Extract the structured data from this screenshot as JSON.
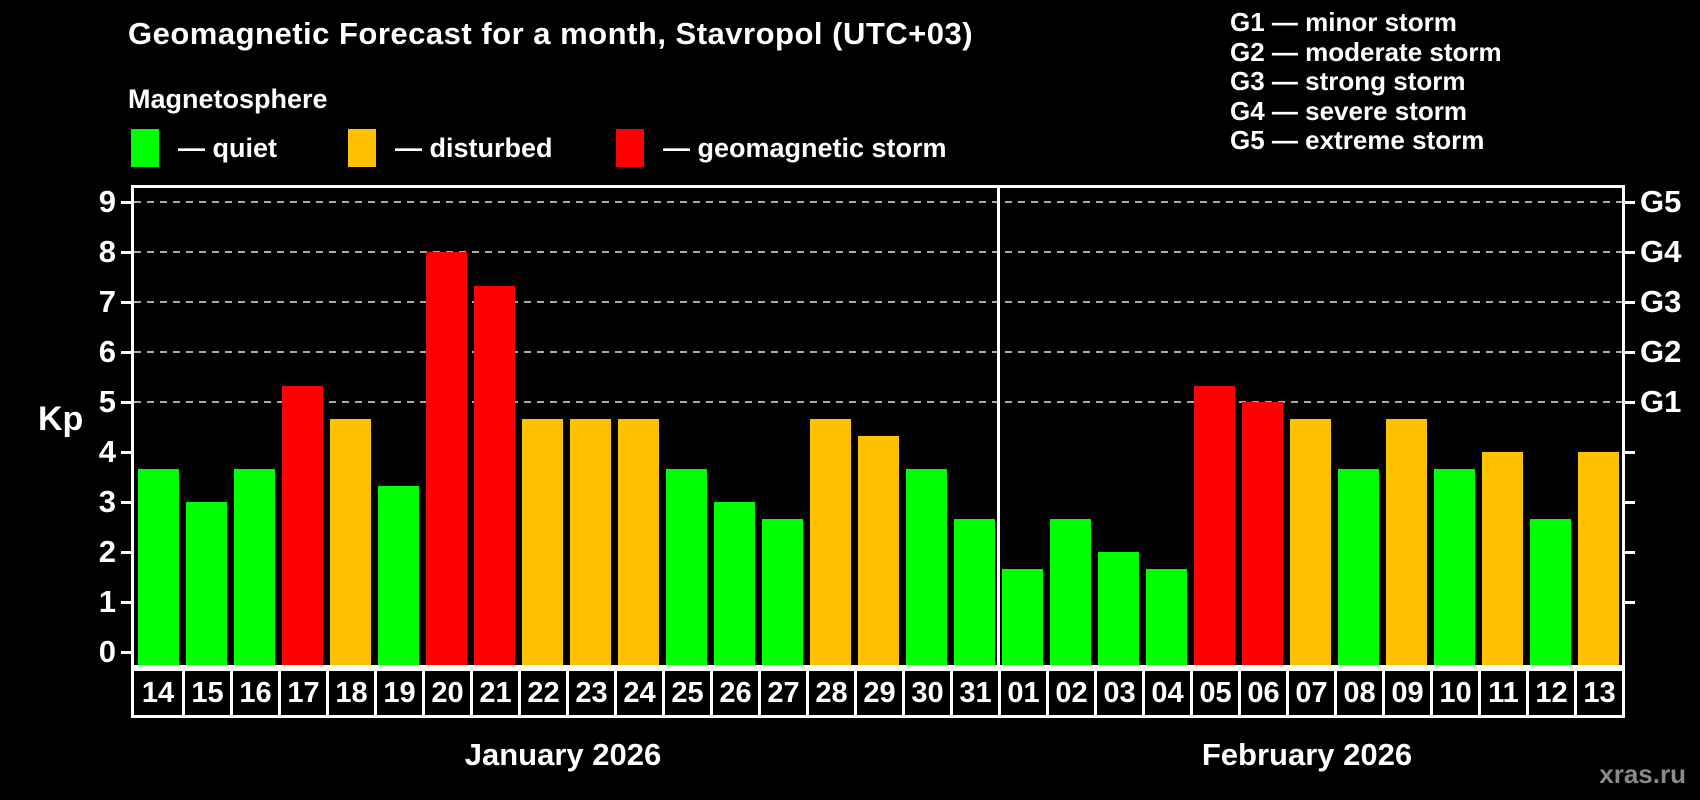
{
  "header": {
    "title": "Geomagnetic Forecast for a month, Stavropol (UTC+03)",
    "subtitle": "Magnetosphere"
  },
  "magnetosphere_legend": [
    {
      "key": "quiet",
      "label": "— quiet",
      "color": "#00ff00"
    },
    {
      "key": "disturbed",
      "label": "— disturbed",
      "color": "#ffc000"
    },
    {
      "key": "storm",
      "label": "— geomagnetic storm",
      "color": "#ff0000"
    }
  ],
  "storm_scale_legend": [
    "G1 — minor storm",
    "G2 — moderate storm",
    "G3 — strong storm",
    "G4 — severe storm",
    "G5 — extreme storm"
  ],
  "watermark": "xras.ru",
  "colors": {
    "quiet": "#00ff00",
    "disturbed": "#ffc000",
    "storm": "#ff0000",
    "grid": "#a9a9a9",
    "frame": "#ffffff",
    "background": "#000000",
    "watermark": "#8a8a8a"
  },
  "chart_data": {
    "type": "bar",
    "ylabel": "Kp",
    "ylim": [
      0,
      9.3
    ],
    "yticks": [
      0,
      1,
      2,
      3,
      4,
      5,
      6,
      7,
      8,
      9
    ],
    "gridlines_at": [
      5,
      6,
      7,
      8,
      9
    ],
    "grid": "dashed-horizontal",
    "legend_position": "top",
    "right_axis_labels": [
      {
        "kp": 5,
        "label": "G1"
      },
      {
        "kp": 6,
        "label": "G2"
      },
      {
        "kp": 7,
        "label": "G3"
      },
      {
        "kp": 8,
        "label": "G4"
      },
      {
        "kp": 9,
        "label": "G5"
      }
    ],
    "months": [
      {
        "label": "January 2026",
        "days": [
          {
            "day": "14",
            "kp": 3.67,
            "status": "quiet"
          },
          {
            "day": "15",
            "kp": 3.0,
            "status": "quiet"
          },
          {
            "day": "16",
            "kp": 3.67,
            "status": "quiet"
          },
          {
            "day": "17",
            "kp": 5.33,
            "status": "storm"
          },
          {
            "day": "18",
            "kp": 4.67,
            "status": "disturbed"
          },
          {
            "day": "19",
            "kp": 3.33,
            "status": "quiet"
          },
          {
            "day": "20",
            "kp": 8.0,
            "status": "storm"
          },
          {
            "day": "21",
            "kp": 7.33,
            "status": "storm"
          },
          {
            "day": "22",
            "kp": 4.67,
            "status": "disturbed"
          },
          {
            "day": "23",
            "kp": 4.67,
            "status": "disturbed"
          },
          {
            "day": "24",
            "kp": 4.67,
            "status": "disturbed"
          },
          {
            "day": "25",
            "kp": 3.67,
            "status": "quiet"
          },
          {
            "day": "26",
            "kp": 3.0,
            "status": "quiet"
          },
          {
            "day": "27",
            "kp": 2.67,
            "status": "quiet"
          },
          {
            "day": "28",
            "kp": 4.67,
            "status": "disturbed"
          },
          {
            "day": "29",
            "kp": 4.33,
            "status": "disturbed"
          },
          {
            "day": "30",
            "kp": 3.67,
            "status": "quiet"
          },
          {
            "day": "31",
            "kp": 2.67,
            "status": "quiet"
          }
        ]
      },
      {
        "label": "February 2026",
        "days": [
          {
            "day": "01",
            "kp": 1.67,
            "status": "quiet"
          },
          {
            "day": "02",
            "kp": 2.67,
            "status": "quiet"
          },
          {
            "day": "03",
            "kp": 2.0,
            "status": "quiet"
          },
          {
            "day": "04",
            "kp": 1.67,
            "status": "quiet"
          },
          {
            "day": "05",
            "kp": 5.33,
            "status": "storm"
          },
          {
            "day": "06",
            "kp": 5.0,
            "status": "storm"
          },
          {
            "day": "07",
            "kp": 4.67,
            "status": "disturbed"
          },
          {
            "day": "08",
            "kp": 3.67,
            "status": "quiet"
          },
          {
            "day": "09",
            "kp": 4.67,
            "status": "disturbed"
          },
          {
            "day": "10",
            "kp": 3.67,
            "status": "quiet"
          },
          {
            "day": "11",
            "kp": 4.0,
            "status": "disturbed"
          },
          {
            "day": "12",
            "kp": 2.67,
            "status": "quiet"
          },
          {
            "day": "13",
            "kp": 4.0,
            "status": "disturbed"
          }
        ]
      }
    ]
  }
}
